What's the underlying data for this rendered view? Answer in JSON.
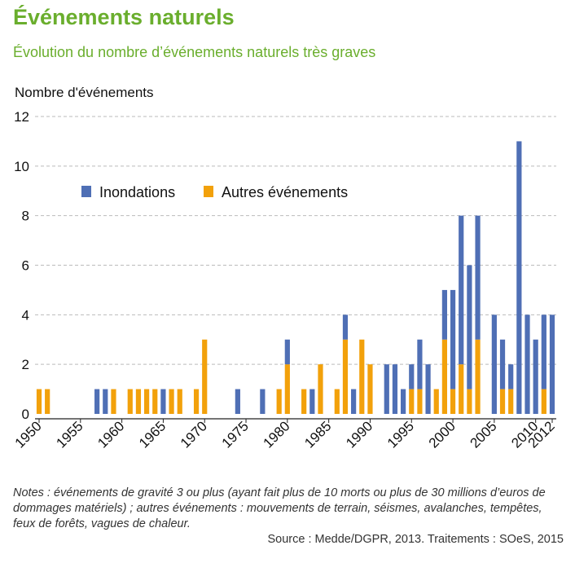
{
  "header": {
    "title": "Événements naturels",
    "subtitle": "Évolution du nombre d’événements naturels très graves"
  },
  "notes": "Notes : événements de gravité 3 ou plus (ayant fait plus de 10 morts ou plus de 30 millions d’euros de dommages matériels) ; autres événements : mouvements de terrain, séismes, avalanches, tempêtes, feux de forêts, vagues de chaleur.",
  "source": "Source : Medde/DGPR, 2013. Traitements : SOeS, 2015",
  "colors": {
    "inondations": "#4f6fb5",
    "autres": "#f2a10b",
    "title": "#6aae2d",
    "grid": "#bbbbbb"
  },
  "chart_data": {
    "type": "bar",
    "stacked": true,
    "ylabel": "Nombre d'événements",
    "ylim": [
      0,
      12
    ],
    "yticks": [
      0,
      2,
      4,
      6,
      8,
      10,
      12
    ],
    "xticks": [
      "1950",
      "1955",
      "1960",
      "1965",
      "1970",
      "1975",
      "1980",
      "1985",
      "1990",
      "1995",
      "2000",
      "2005",
      "2010",
      "2012"
    ],
    "grid": "horizontal dashed",
    "legend": "top-left",
    "x": [
      1950,
      1951,
      1952,
      1953,
      1954,
      1955,
      1956,
      1957,
      1958,
      1959,
      1960,
      1961,
      1962,
      1963,
      1964,
      1965,
      1966,
      1967,
      1968,
      1969,
      1970,
      1971,
      1972,
      1973,
      1974,
      1975,
      1976,
      1977,
      1978,
      1979,
      1980,
      1981,
      1982,
      1983,
      1984,
      1985,
      1986,
      1987,
      1988,
      1989,
      1990,
      1991,
      1992,
      1993,
      1994,
      1995,
      1996,
      1997,
      1998,
      1999,
      2000,
      2001,
      2002,
      2003,
      2004,
      2005,
      2006,
      2007,
      2008,
      2009,
      2010,
      2011,
      2012
    ],
    "series": [
      {
        "name": "Inondations",
        "values": [
          0,
          0,
          0,
          0,
          0,
          0,
          0,
          1,
          1,
          0,
          0,
          0,
          0,
          0,
          0,
          1,
          0,
          0,
          0,
          0,
          0,
          0,
          0,
          0,
          1,
          0,
          0,
          1,
          0,
          0,
          1,
          0,
          0,
          1,
          0,
          0,
          0,
          1,
          1,
          0,
          0,
          0,
          2,
          2,
          1,
          1,
          2,
          2,
          0,
          2,
          4,
          6,
          5,
          5,
          0,
          4,
          2,
          1,
          11,
          4,
          3,
          3,
          4
        ]
      },
      {
        "name": "Autres événements",
        "values": [
          1,
          1,
          0,
          0,
          0,
          0,
          0,
          0,
          0,
          1,
          0,
          1,
          1,
          1,
          1,
          0,
          1,
          1,
          0,
          1,
          3,
          0,
          0,
          0,
          0,
          0,
          0,
          0,
          0,
          1,
          2,
          0,
          1,
          0,
          2,
          0,
          1,
          3,
          0,
          3,
          2,
          0,
          0,
          0,
          0,
          1,
          1,
          0,
          1,
          3,
          1,
          2,
          1,
          3,
          0,
          0,
          1,
          1,
          0,
          0,
          0,
          1,
          0
        ]
      }
    ]
  }
}
